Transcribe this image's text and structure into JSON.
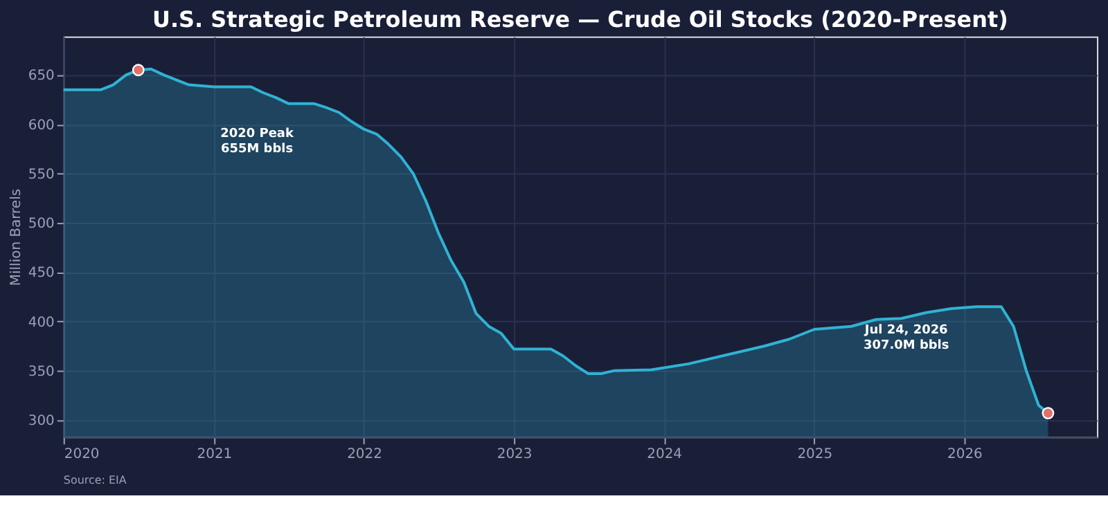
{
  "chart_data": {
    "type": "area",
    "title": "U.S. Strategic Petroleum Reserve — Crude Oil Stocks (2020-Present)",
    "ylabel": "Million Barrels",
    "x": [
      "2020-01",
      "2020-04",
      "2020-05",
      "2020-06",
      "2020-07",
      "2020-08",
      "2020-09",
      "2020-10",
      "2020-11",
      "2021-01",
      "2021-04",
      "2021-05",
      "2021-06",
      "2021-07",
      "2021-09",
      "2021-10",
      "2021-11",
      "2021-12",
      "2022-01",
      "2022-02",
      "2022-03",
      "2022-04",
      "2022-05",
      "2022-06",
      "2022-07",
      "2022-08",
      "2022-09",
      "2022-10",
      "2022-11",
      "2022-12",
      "2023-01",
      "2023-04",
      "2023-05",
      "2023-06",
      "2023-07",
      "2023-08",
      "2023-09",
      "2023-12",
      "2024-03",
      "2024-06",
      "2024-09",
      "2024-11",
      "2025-01",
      "2025-04",
      "2025-06",
      "2025-08",
      "2025-10",
      "2025-12",
      "2026-02",
      "2026-04",
      "2026-05",
      "2026-06",
      "2026-07",
      "2026-07-24"
    ],
    "series": [
      {
        "color": "#2fb3d4",
        "values": [
          635,
          635,
          640,
          650,
          655,
          656,
          650,
          645,
          640,
          638,
          638,
          632,
          627,
          621,
          621,
          617,
          612,
          603,
          595,
          590,
          580,
          567,
          550,
          522,
          490,
          462,
          440,
          408,
          395,
          388,
          372,
          372,
          365,
          355,
          347,
          347,
          350,
          351,
          357,
          366,
          375,
          382,
          392,
          395,
          402,
          403,
          409,
          413,
          415,
          415,
          395,
          350,
          315,
          307
        ]
      },
      {
        "type": "scatter",
        "color": "#e0706a",
        "x": [
          "2020-07",
          "2026-07-24"
        ],
        "values": [
          655,
          307
        ]
      }
    ],
    "xlim": [
      "2020-01",
      "2026-11-20"
    ],
    "ylim": [
      283,
      689
    ],
    "xticks": [
      {
        "value": "2020",
        "label": "2020"
      },
      {
        "value": "2021",
        "label": "2021"
      },
      {
        "value": "2022",
        "label": "2022"
      },
      {
        "value": "2023",
        "label": "2023"
      },
      {
        "value": "2024",
        "label": "2024"
      },
      {
        "value": "2025",
        "label": "2025"
      },
      {
        "value": "2026",
        "label": "2026"
      }
    ],
    "yticks": [
      300,
      350,
      400,
      450,
      500,
      550,
      600,
      650
    ],
    "grid": true,
    "annotations": [
      "2020 Peak\n655M bbls",
      "Jul 24, 2026\n307.0M bbls",
      "Source: EIA"
    ]
  }
}
